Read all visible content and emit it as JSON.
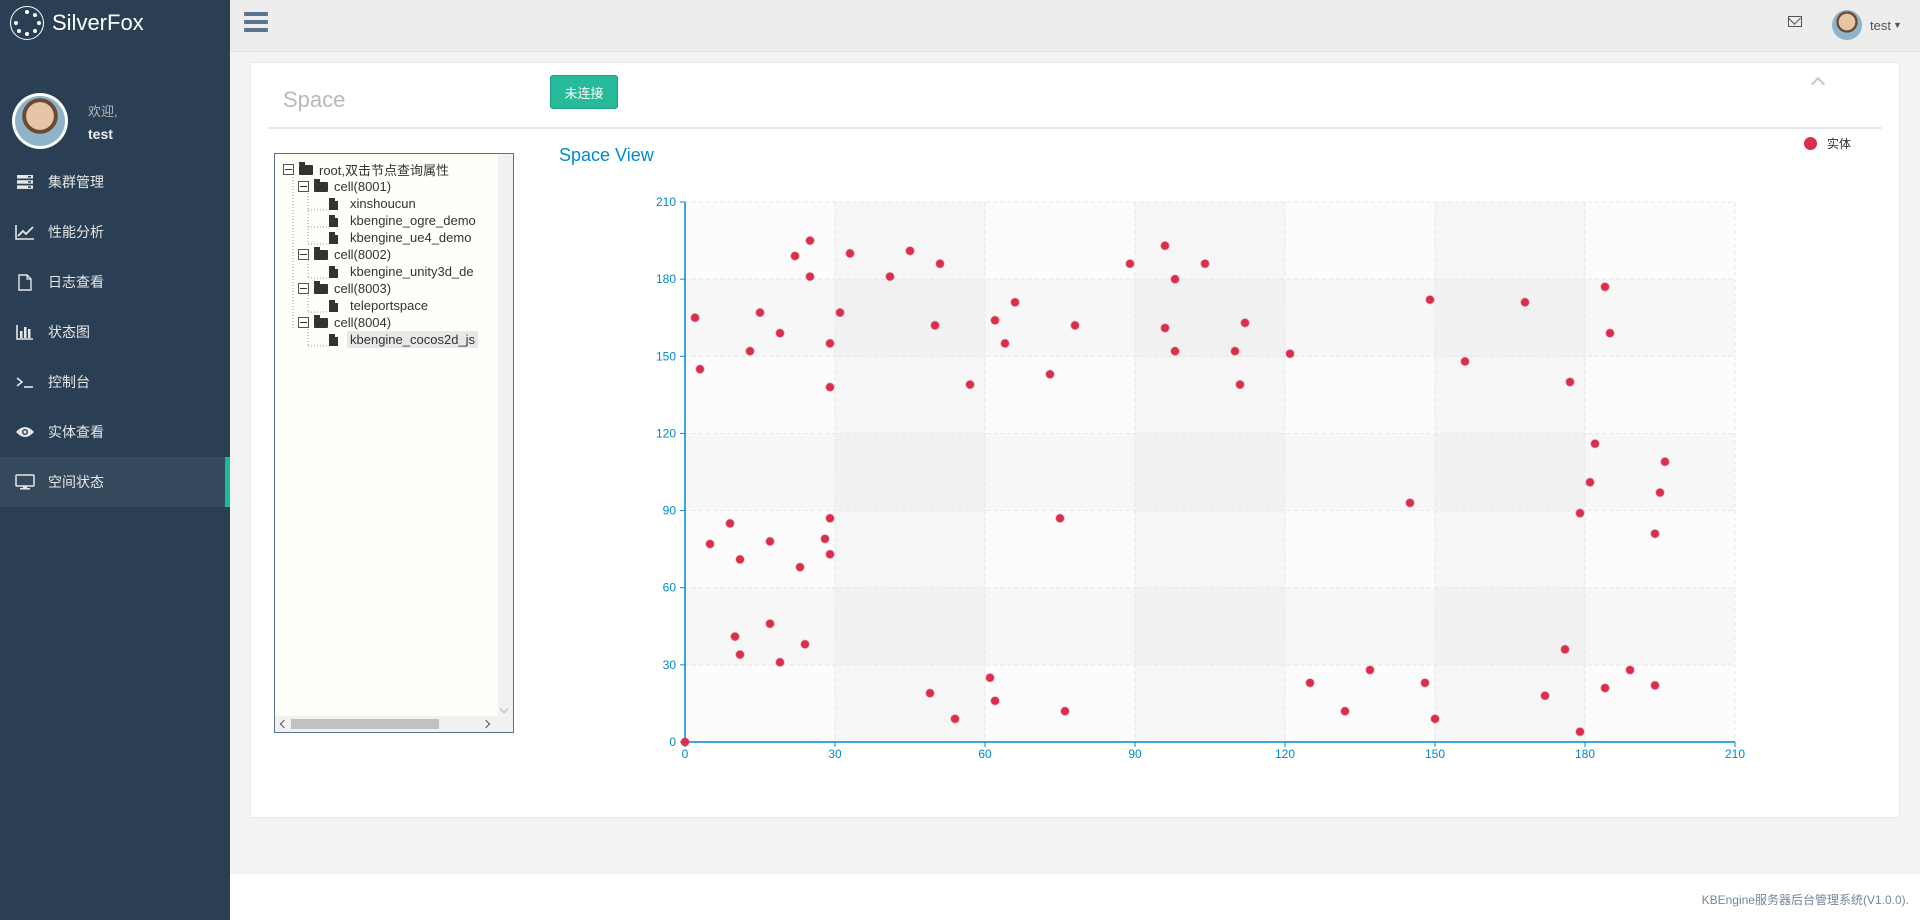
{
  "app": {
    "brand": "SilverFox"
  },
  "profile": {
    "welcome": "欢迎,",
    "username": "test"
  },
  "sidebar": {
    "items": [
      {
        "label": "集群管理",
        "icon": "server-icon"
      },
      {
        "label": "性能分析",
        "icon": "line-chart-icon"
      },
      {
        "label": "日志查看",
        "icon": "file-icon"
      },
      {
        "label": "状态图",
        "icon": "bar-chart-icon"
      },
      {
        "label": "控制台",
        "icon": "terminal-icon"
      },
      {
        "label": "实体查看",
        "icon": "eye-icon"
      },
      {
        "label": "空间状态",
        "icon": "desktop-icon",
        "active": true
      }
    ]
  },
  "topnav": {
    "user": "test"
  },
  "panel": {
    "title": "Space",
    "connect_button": "未连接"
  },
  "tree": {
    "root": "root,双击节点查询属性",
    "cells": [
      {
        "label": "cell(8001)",
        "children": [
          "xinshoucun",
          "kbengine_ogre_demo",
          "kbengine_ue4_demo"
        ]
      },
      {
        "label": "cell(8002)",
        "children": [
          "kbengine_unity3d_de"
        ]
      },
      {
        "label": "cell(8003)",
        "children": [
          "teleportspace"
        ]
      },
      {
        "label": "cell(8004)",
        "children": [
          "kbengine_cocos2d_js"
        ]
      }
    ],
    "selected": "kbengine_cocos2d_js"
  },
  "chart_data": {
    "type": "scatter",
    "title": "Space View",
    "legend": [
      "实体"
    ],
    "legend_position": "top-right",
    "xlim": [
      0,
      210
    ],
    "ylim": [
      0,
      210
    ],
    "xticks": [
      0,
      30,
      60,
      90,
      120,
      150,
      180,
      210
    ],
    "yticks": [
      0,
      30,
      60,
      90,
      120,
      150,
      180,
      210
    ],
    "color": "#d8304b",
    "series": [
      {
        "name": "实体",
        "points": [
          [
            0,
            0
          ],
          [
            2,
            165
          ],
          [
            3,
            145
          ],
          [
            5,
            77
          ],
          [
            9,
            85
          ],
          [
            10,
            41
          ],
          [
            11,
            71
          ],
          [
            11,
            34
          ],
          [
            13,
            152
          ],
          [
            15,
            167
          ],
          [
            17,
            46
          ],
          [
            17,
            78
          ],
          [
            19,
            31
          ],
          [
            19,
            159
          ],
          [
            22,
            189
          ],
          [
            23,
            68
          ],
          [
            24,
            38
          ],
          [
            25,
            195
          ],
          [
            25,
            181
          ],
          [
            28,
            79
          ],
          [
            29,
            155
          ],
          [
            29,
            138
          ],
          [
            29,
            73
          ],
          [
            29,
            87
          ],
          [
            31,
            167
          ],
          [
            33,
            190
          ],
          [
            41,
            181
          ],
          [
            45,
            191
          ],
          [
            49,
            19
          ],
          [
            50,
            162
          ],
          [
            51,
            186
          ],
          [
            54,
            9
          ],
          [
            57,
            139
          ],
          [
            61,
            25
          ],
          [
            62,
            164
          ],
          [
            62,
            16
          ],
          [
            64,
            155
          ],
          [
            66,
            171
          ],
          [
            73,
            143
          ],
          [
            75,
            87
          ],
          [
            76,
            12
          ],
          [
            78,
            162
          ],
          [
            89,
            186
          ],
          [
            96,
            193
          ],
          [
            96,
            161
          ],
          [
            98,
            180
          ],
          [
            98,
            152
          ],
          [
            104,
            186
          ],
          [
            110,
            152
          ],
          [
            111,
            139
          ],
          [
            112,
            163
          ],
          [
            121,
            151
          ],
          [
            125,
            23
          ],
          [
            132,
            12
          ],
          [
            137,
            28
          ],
          [
            145,
            93
          ],
          [
            148,
            23
          ],
          [
            149,
            172
          ],
          [
            150,
            9
          ],
          [
            156,
            148
          ],
          [
            168,
            171
          ],
          [
            172,
            18
          ],
          [
            176,
            36
          ],
          [
            177,
            140
          ],
          [
            179,
            4
          ],
          [
            179,
            89
          ],
          [
            181,
            101
          ],
          [
            182,
            116
          ],
          [
            184,
            21
          ],
          [
            184,
            177
          ],
          [
            185,
            159
          ],
          [
            189,
            28
          ],
          [
            194,
            81
          ],
          [
            194,
            22
          ],
          [
            195,
            97
          ],
          [
            196,
            109
          ]
        ]
      }
    ]
  },
  "footer": {
    "text": "KBEngine服务器后台管理系统(V1.0.0)."
  }
}
